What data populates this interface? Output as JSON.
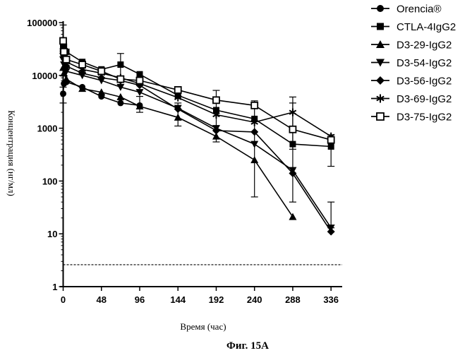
{
  "chart_data": {
    "type": "line",
    "title": "",
    "xlabel": "Время (час)",
    "ylabel": "Концентрация (нг/мл)",
    "caption": "Фиг. 15А",
    "xticks": [
      0,
      48,
      96,
      144,
      192,
      240,
      288,
      336
    ],
    "yticks": [
      1,
      10,
      100,
      1000,
      10000,
      100000
    ],
    "ytick_labels": [
      "1",
      "10",
      "100",
      "1000",
      "10000",
      "100000"
    ],
    "xlim": [
      -4,
      350
    ],
    "ylim": [
      1,
      100000
    ],
    "yscale": "log",
    "grid": false,
    "legend_position": "right",
    "reference_line": 2.6,
    "series": [
      {
        "name": "Orencia®",
        "marker": "circle",
        "x": [
          0,
          1,
          4,
          24,
          48,
          72,
          96
        ],
        "y": [
          4500,
          7000,
          7500,
          6000,
          4000,
          3000,
          2700
        ]
      },
      {
        "name": "CTLA-4IgG2",
        "marker": "square",
        "x": [
          0,
          1,
          4,
          24,
          48,
          72,
          96,
          144,
          192,
          240,
          288,
          336
        ],
        "y": [
          38000,
          35000,
          28000,
          18000,
          13000,
          16000,
          10500,
          4200,
          2200,
          1500,
          500,
          450
        ]
      },
      {
        "name": "D3-29-IgG2",
        "marker": "triangle-up",
        "x": [
          0,
          1,
          4,
          24,
          48,
          72,
          96,
          144,
          192,
          240,
          288
        ],
        "y": [
          14000,
          11000,
          8500,
          5600,
          4800,
          3900,
          2600,
          1600,
          700,
          250,
          21
        ]
      },
      {
        "name": "D3-54-IgG2",
        "marker": "triangle-down",
        "x": [
          0,
          1,
          4,
          24,
          48,
          72,
          96,
          144,
          192,
          240,
          288,
          336
        ],
        "y": [
          20000,
          16000,
          12000,
          10000,
          8000,
          6000,
          4800,
          2400,
          1000,
          500,
          160,
          13
        ]
      },
      {
        "name": "D3-56-IgG2",
        "marker": "diamond",
        "x": [
          0,
          1,
          4,
          24,
          48,
          72,
          96,
          144,
          192,
          240,
          288,
          336
        ],
        "y": [
          26000,
          22000,
          15000,
          11000,
          9000,
          8000,
          6500,
          2300,
          900,
          850,
          140,
          11
        ]
      },
      {
        "name": "D3-69-IgG2",
        "marker": "asterisk",
        "x": [
          0,
          1,
          4,
          24,
          48,
          72,
          96,
          144,
          192,
          240,
          288,
          336
        ],
        "y": [
          30000,
          25000,
          18000,
          13000,
          11000,
          9000,
          7000,
          3800,
          1800,
          1300,
          2000,
          700
        ]
      },
      {
        "name": "D3-75-IgG2",
        "marker": "open-square",
        "x": [
          0,
          1,
          4,
          24,
          48,
          72,
          96,
          144,
          192,
          240,
          288,
          336
        ],
        "y": [
          45000,
          28000,
          20000,
          16000,
          12000,
          8500,
          8000,
          5300,
          3400,
          2700,
          950,
          600
        ]
      }
    ],
    "error_bars": [
      {
        "x": 0,
        "lo": 30000,
        "hi": 90000
      },
      {
        "x": 0,
        "lo": 3000,
        "hi": 6000
      },
      {
        "x": 72,
        "lo": 9000,
        "hi": 26000
      },
      {
        "x": 96,
        "lo": 2000,
        "hi": 4000
      },
      {
        "x": 144,
        "lo": 1100,
        "hi": 3000
      },
      {
        "x": 192,
        "lo": 550,
        "hi": 5200
      },
      {
        "x": 240,
        "lo": 50,
        "hi": 3300
      },
      {
        "x": 288,
        "lo": 40,
        "hi": 3900
      },
      {
        "x": 288,
        "lo": 400,
        "hi": 3000
      },
      {
        "x": 336,
        "lo": 13,
        "hi": 40
      },
      {
        "x": 336,
        "lo": 190,
        "hi": 750
      }
    ]
  }
}
